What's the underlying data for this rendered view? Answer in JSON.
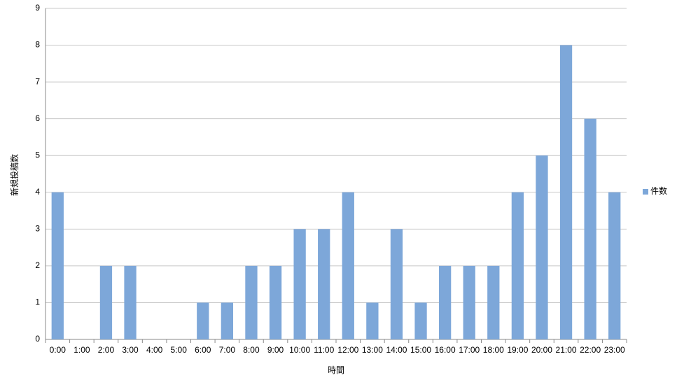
{
  "chart_data": {
    "type": "bar",
    "y_label": "新規投稿数",
    "x_label": "時間",
    "categories": [
      "0:00",
      "1:00",
      "2:00",
      "3:00",
      "4:00",
      "5:00",
      "6:00",
      "7:00",
      "8:00",
      "9:00",
      "10:00",
      "11:00",
      "12:00",
      "13:00",
      "14:00",
      "15:00",
      "16:00",
      "17:00",
      "18:00",
      "19:00",
      "20:00",
      "21:00",
      "22:00",
      "23:00"
    ],
    "series": [
      {
        "name": "件数",
        "color": "#7da7d9",
        "values": [
          4,
          0,
          2,
          2,
          0,
          0,
          1,
          1,
          2,
          2,
          3,
          3,
          4,
          1,
          3,
          1,
          2,
          2,
          2,
          4,
          5,
          8,
          6,
          4
        ]
      }
    ],
    "ylim": [
      0,
      9
    ],
    "yticks": [
      0,
      1,
      2,
      3,
      4,
      5,
      6,
      7,
      8,
      9
    ],
    "grid": true,
    "legend": "right"
  }
}
